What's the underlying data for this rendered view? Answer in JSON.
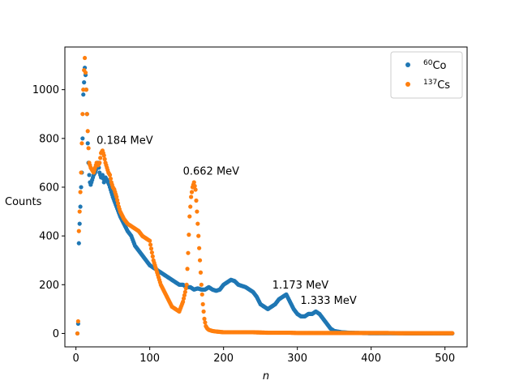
{
  "chart_data": {
    "type": "scatter",
    "title": "",
    "xlabel": "n",
    "ylabel": "Counts",
    "xlim": [
      -15,
      530
    ],
    "ylim": [
      -55,
      1175
    ],
    "xticks": [
      0,
      100,
      200,
      300,
      400,
      500
    ],
    "yticks": [
      0,
      200,
      400,
      600,
      800,
      1000
    ],
    "grid": false,
    "legend_position": "top-right",
    "series": [
      {
        "name": "60Co",
        "name_sup": "60",
        "name_base": "Co",
        "color": "#1f77b4",
        "x": [
          2,
          3,
          4,
          5,
          6,
          7,
          8,
          9,
          10,
          11,
          12,
          13,
          14,
          15,
          16,
          17,
          18,
          19,
          20,
          22,
          24,
          26,
          28,
          30,
          32,
          34,
          36,
          38,
          40,
          42,
          45,
          48,
          50,
          55,
          60,
          65,
          70,
          75,
          80,
          85,
          90,
          95,
          100,
          105,
          110,
          115,
          120,
          125,
          130,
          135,
          140,
          145,
          150,
          155,
          160,
          165,
          170,
          175,
          180,
          185,
          190,
          195,
          200,
          205,
          210,
          215,
          220,
          225,
          230,
          235,
          240,
          245,
          250,
          255,
          260,
          265,
          270,
          275,
          280,
          285,
          290,
          295,
          300,
          305,
          310,
          315,
          320,
          325,
          330,
          335,
          340,
          345,
          350,
          360,
          370,
          380,
          400,
          420,
          440,
          460,
          480,
          500,
          510
        ],
        "y": [
          0,
          40,
          370,
          450,
          520,
          600,
          660,
          800,
          980,
          1030,
          1090,
          1060,
          1000,
          900,
          780,
          700,
          650,
          620,
          610,
          630,
          650,
          660,
          680,
          700,
          660,
          640,
          650,
          620,
          640,
          630,
          610,
          580,
          560,
          520,
          480,
          450,
          420,
          400,
          360,
          340,
          320,
          300,
          280,
          270,
          260,
          250,
          240,
          230,
          220,
          210,
          200,
          200,
          190,
          190,
          180,
          185,
          180,
          180,
          190,
          180,
          175,
          180,
          200,
          210,
          220,
          215,
          200,
          195,
          190,
          180,
          170,
          150,
          120,
          110,
          100,
          110,
          120,
          140,
          150,
          160,
          130,
          100,
          80,
          70,
          70,
          80,
          80,
          90,
          80,
          60,
          40,
          20,
          10,
          5,
          3,
          2,
          1,
          1,
          1,
          0,
          0,
          0,
          0
        ]
      },
      {
        "name": "137Cs",
        "name_sup": "137",
        "name_base": "Cs",
        "color": "#ff7f0e",
        "x": [
          2,
          3,
          4,
          5,
          6,
          7,
          8,
          9,
          10,
          11,
          12,
          13,
          14,
          15,
          16,
          17,
          18,
          20,
          22,
          24,
          26,
          28,
          30,
          32,
          34,
          36,
          38,
          40,
          42,
          44,
          46,
          48,
          50,
          52,
          55,
          58,
          60,
          65,
          70,
          75,
          80,
          85,
          90,
          95,
          100,
          105,
          110,
          115,
          120,
          125,
          130,
          135,
          140,
          145,
          148,
          150,
          152,
          154,
          156,
          158,
          160,
          162,
          164,
          166,
          168,
          170,
          172,
          174,
          176,
          178,
          180,
          185,
          190,
          200,
          210,
          220,
          230,
          240,
          250,
          260,
          270,
          280,
          290,
          300,
          320,
          340,
          360,
          380,
          400,
          420,
          440,
          460,
          480,
          500,
          510
        ],
        "y": [
          0,
          50,
          420,
          500,
          580,
          660,
          780,
          900,
          1000,
          1080,
          1130,
          1070,
          1000,
          900,
          830,
          760,
          700,
          680,
          670,
          660,
          680,
          700,
          690,
          700,
          740,
          750,
          730,
          700,
          680,
          660,
          650,
          620,
          600,
          590,
          560,
          520,
          500,
          470,
          450,
          440,
          430,
          420,
          400,
          390,
          380,
          300,
          250,
          200,
          170,
          140,
          110,
          100,
          90,
          130,
          170,
          200,
          330,
          480,
          560,
          600,
          620,
          590,
          500,
          400,
          300,
          200,
          120,
          60,
          30,
          20,
          15,
          10,
          8,
          5,
          5,
          5,
          5,
          5,
          4,
          3,
          3,
          3,
          3,
          2,
          2,
          2,
          2,
          2,
          2,
          2,
          1,
          1,
          1,
          1,
          1
        ]
      }
    ],
    "annotations": [
      {
        "text": "0.184 MeV",
        "x": 28,
        "y": 778
      },
      {
        "text": "0.662 MeV",
        "x": 145,
        "y": 652
      },
      {
        "text": "1.173 MeV",
        "x": 266,
        "y": 185
      },
      {
        "text": "1.333 MeV",
        "x": 304,
        "y": 122
      }
    ]
  }
}
